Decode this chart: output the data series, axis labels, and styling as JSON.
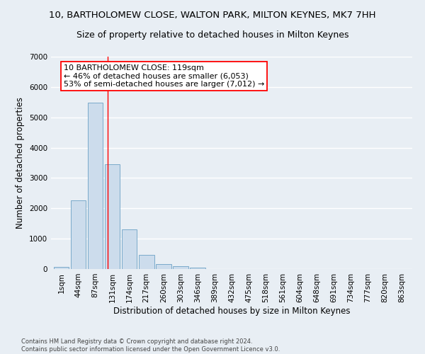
{
  "title": "10, BARTHOLOMEW CLOSE, WALTON PARK, MILTON KEYNES, MK7 7HH",
  "subtitle": "Size of property relative to detached houses in Milton Keynes",
  "xlabel": "Distribution of detached houses by size in Milton Keynes",
  "ylabel": "Number of detached properties",
  "footer_line1": "Contains HM Land Registry data © Crown copyright and database right 2024.",
  "footer_line2": "Contains public sector information licensed under the Open Government Licence v3.0.",
  "bar_labels": [
    "1sqm",
    "44sqm",
    "87sqm",
    "131sqm",
    "174sqm",
    "217sqm",
    "260sqm",
    "303sqm",
    "346sqm",
    "389sqm",
    "432sqm",
    "475sqm",
    "518sqm",
    "561sqm",
    "604sqm",
    "648sqm",
    "691sqm",
    "734sqm",
    "777sqm",
    "820sqm",
    "863sqm"
  ],
  "bar_values": [
    80,
    2270,
    5480,
    3450,
    1310,
    470,
    155,
    85,
    50,
    0,
    0,
    0,
    0,
    0,
    0,
    0,
    0,
    0,
    0,
    0,
    0
  ],
  "bar_color": "#ccdcec",
  "bar_edgecolor": "#7aaaca",
  "ylim": [
    0,
    7000
  ],
  "yticks": [
    0,
    1000,
    2000,
    3000,
    4000,
    5000,
    6000,
    7000
  ],
  "annotation_line1": "10 BARTHOLOMEW CLOSE: 119sqm",
  "annotation_line2": "← 46% of detached houses are smaller (6,053)",
  "annotation_line3": "53% of semi-detached houses are larger (7,012) →",
  "vline_x": 2.72,
  "vline_color": "red",
  "background_color": "#e8eef4",
  "grid_color": "#ffffff",
  "title_fontsize": 9.5,
  "subtitle_fontsize": 9,
  "axis_label_fontsize": 8.5,
  "tick_fontsize": 7.5,
  "annotation_fontsize": 8,
  "footer_fontsize": 6
}
